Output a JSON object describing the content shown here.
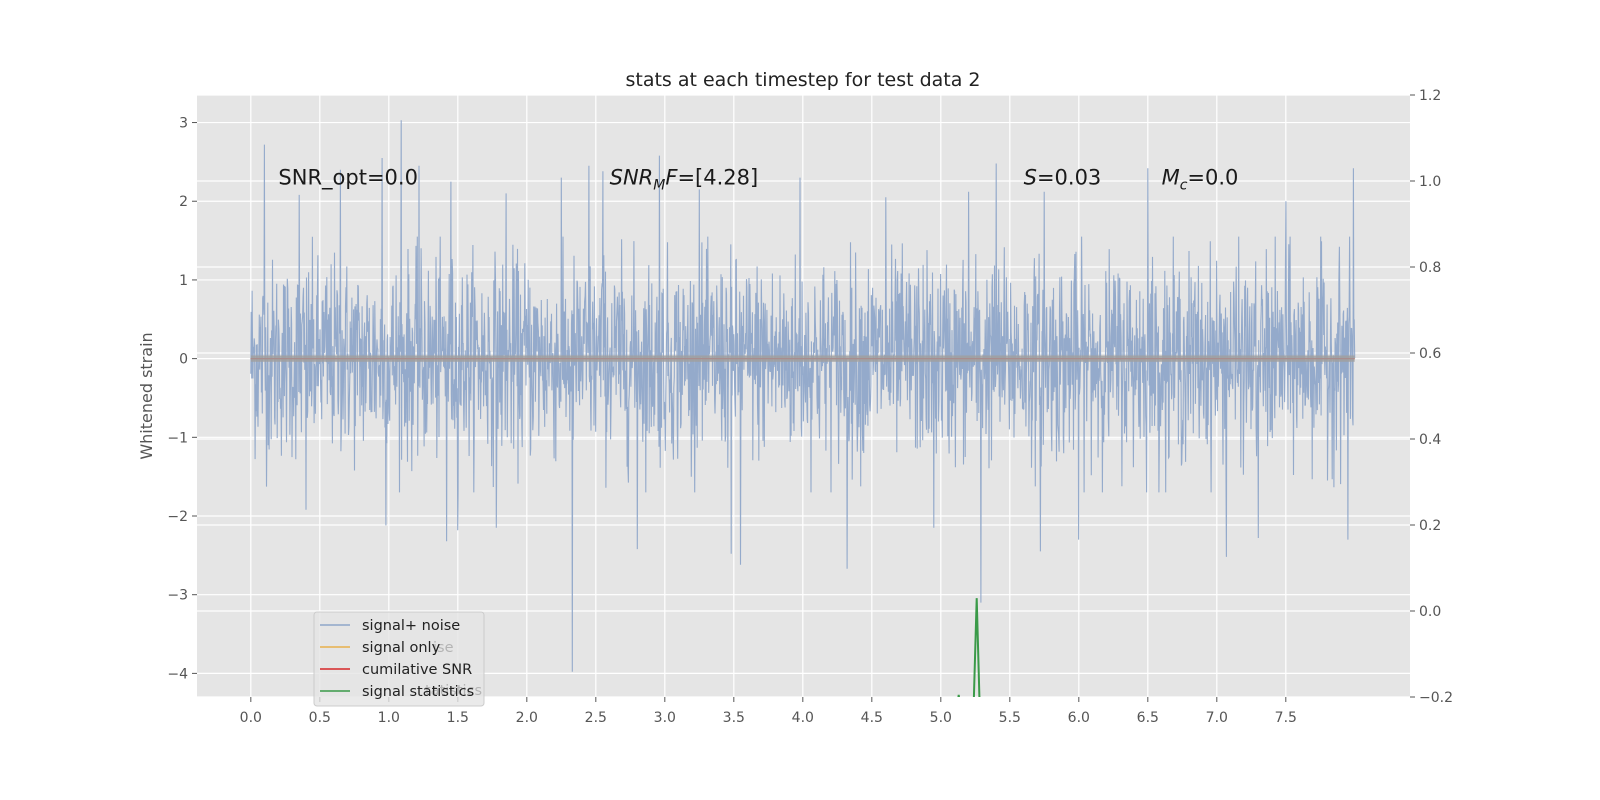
{
  "chart_data": {
    "type": "line",
    "title": "stats at each timestep for test data 2",
    "ylabel": "Whitened strain",
    "xlabel": "",
    "xlim": [
      -0.39,
      8.4
    ],
    "ylim": [
      -4.3,
      3.35
    ],
    "y2lim": [
      -0.2,
      1.2
    ],
    "x_ticks": [
      "0.0",
      "0.5",
      "1.0",
      "1.5",
      "2.0",
      "2.5",
      "3.0",
      "3.5",
      "4.0",
      "4.5",
      "5.0",
      "5.5",
      "6.0",
      "6.5",
      "7.0",
      "7.5"
    ],
    "y_ticks": [
      {
        "value": 3,
        "label": "3"
      },
      {
        "value": 2,
        "label": "2"
      },
      {
        "value": 1,
        "label": "1"
      },
      {
        "value": 0,
        "label": "0"
      },
      {
        "value": -1,
        "label": "−1"
      },
      {
        "value": -2,
        "label": "−2"
      },
      {
        "value": -3,
        "label": "−3"
      },
      {
        "value": -4,
        "label": "−4"
      }
    ],
    "y2_ticks": [
      {
        "value": 1.2,
        "label": "1.2"
      },
      {
        "value": 1.0,
        "label": "1.0"
      },
      {
        "value": 0.8,
        "label": "0.8"
      },
      {
        "value": 0.6,
        "label": "0.6"
      },
      {
        "value": 0.4,
        "label": "0.4"
      },
      {
        "value": 0.2,
        "label": "0.2"
      },
      {
        "value": 0.0,
        "label": "0.0"
      },
      {
        "value": -0.2,
        "label": "−0.2"
      }
    ],
    "grid": true,
    "series": [
      {
        "name": "signal+ noise",
        "color": "#8fa6c9",
        "axis": "left",
        "x_range": [
          0.0,
          7.999
        ],
        "amplitude_envelope": [
          -1.5,
          1.3
        ],
        "spikes": [
          {
            "x": 0.1,
            "y": 2.72
          },
          {
            "x": 0.35,
            "y": 2.08
          },
          {
            "x": 0.65,
            "y": 2.4
          },
          {
            "x": 0.95,
            "y": 2.55
          },
          {
            "x": 1.09,
            "y": 3.03
          },
          {
            "x": 1.22,
            "y": 2.45
          },
          {
            "x": 1.45,
            "y": 2.25
          },
          {
            "x": 1.85,
            "y": 2.1
          },
          {
            "x": 2.25,
            "y": 2.3
          },
          {
            "x": 2.45,
            "y": 2.45
          },
          {
            "x": 2.55,
            "y": 2.38
          },
          {
            "x": 2.96,
            "y": 2.58
          },
          {
            "x": 3.25,
            "y": 2.15
          },
          {
            "x": 3.98,
            "y": 2.3
          },
          {
            "x": 4.6,
            "y": 2.05
          },
          {
            "x": 5.2,
            "y": 2.12
          },
          {
            "x": 5.4,
            "y": 2.48
          },
          {
            "x": 5.75,
            "y": 2.12
          },
          {
            "x": 6.5,
            "y": 2.42
          },
          {
            "x": 7.07,
            "y": 2.23
          },
          {
            "x": 7.5,
            "y": 2.0
          },
          {
            "x": 7.99,
            "y": 2.42
          },
          {
            "x": 0.4,
            "y": -1.92
          },
          {
            "x": 0.98,
            "y": -2.12
          },
          {
            "x": 1.42,
            "y": -2.32
          },
          {
            "x": 1.5,
            "y": -2.18
          },
          {
            "x": 1.78,
            "y": -2.15
          },
          {
            "x": 2.33,
            "y": -3.98
          },
          {
            "x": 2.8,
            "y": -2.42
          },
          {
            "x": 3.48,
            "y": -2.48
          },
          {
            "x": 3.55,
            "y": -2.62
          },
          {
            "x": 4.32,
            "y": -2.67
          },
          {
            "x": 4.95,
            "y": -2.15
          },
          {
            "x": 5.29,
            "y": -3.1
          },
          {
            "x": 5.72,
            "y": -2.45
          },
          {
            "x": 6.0,
            "y": -2.3
          },
          {
            "x": 7.07,
            "y": -2.52
          },
          {
            "x": 7.3,
            "y": -2.28
          },
          {
            "x": 7.95,
            "y": -2.3
          }
        ]
      },
      {
        "name": "signal only",
        "color": "#e8b04b",
        "axis": "left",
        "x": [
          0.0,
          7.999
        ],
        "y": [
          0.0,
          0.0
        ]
      },
      {
        "name": "cumilative SNR",
        "color": "#d62728",
        "axis": "left",
        "x": [
          0.0,
          7.999
        ],
        "y": [
          0.0,
          0.0
        ]
      },
      {
        "name": "signal statistics",
        "color": "#3a9a48",
        "axis": "right",
        "x": [
          5.1,
          5.12,
          5.13,
          5.14,
          5.22,
          5.24,
          5.26,
          5.28,
          5.3
        ],
        "y": [
          -0.25,
          -0.22,
          -0.195,
          -0.22,
          -0.25,
          -0.2,
          0.03,
          -0.2,
          -0.25
        ]
      }
    ],
    "annotations": [
      {
        "id": "snr_opt",
        "prefix": "SNR_opt",
        "value": "=0.0",
        "x": 0.2,
        "y": 2.3
      },
      {
        "id": "snr_mf",
        "main": "SNR",
        "subscript": "M",
        "suffix": "F",
        "value": "=[4.28]",
        "x": 2.6,
        "y": 2.3
      },
      {
        "id": "s",
        "main": "S",
        "value": "=0.03",
        "x": 5.6,
        "y": 2.3
      },
      {
        "id": "mc",
        "main": "M",
        "subscript": "c",
        "value": "=0.0",
        "x": 6.6,
        "y": 2.3
      }
    ],
    "legend": {
      "placement": "lower-left",
      "entries": [
        "signal+ noise",
        "signal only",
        "cumilative SNR",
        "signal statistics"
      ],
      "ghost_text": [
        "ise",
        "tatistics"
      ]
    }
  }
}
